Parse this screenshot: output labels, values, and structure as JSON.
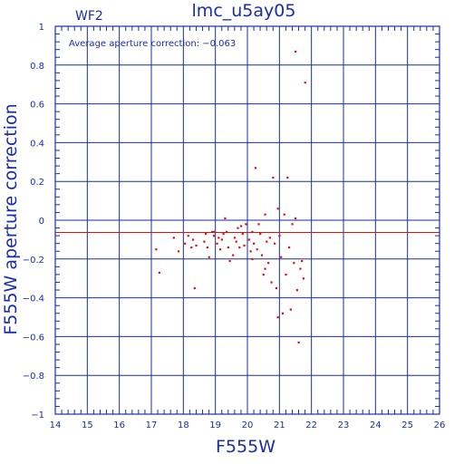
{
  "chart_data": {
    "type": "scatter",
    "title": "lmc_u5ay05",
    "subtitle": "WF2",
    "annotation": "Average aperture correction: −0.063",
    "xlabel": "F555W",
    "ylabel": "F555W aperture correction",
    "xlim": [
      14,
      26
    ],
    "ylim": [
      -1,
      1
    ],
    "xticks": [
      "14",
      "15",
      "16",
      "17",
      "18",
      "19",
      "20",
      "21",
      "22",
      "23",
      "24",
      "25",
      "26"
    ],
    "yticks": [
      "−1",
      "−0.8",
      "−0.6",
      "−0.4",
      "−0.2",
      "0",
      "0.2",
      "0.4",
      "0.6",
      "0.8",
      "1"
    ],
    "grid": true,
    "reference_lines": [
      {
        "axis": "y",
        "value": 0,
        "color": "#1a2ea8"
      },
      {
        "axis": "y",
        "value": -0.063,
        "color": "#e01010"
      }
    ],
    "point_color": "#e01010",
    "axis_color": "#1a2ea8",
    "series": [
      {
        "values": [
          {
            "x": 17.15,
            "y": -0.15
          },
          {
            "x": 17.25,
            "y": -0.27
          },
          {
            "x": 17.7,
            "y": -0.09
          },
          {
            "x": 17.85,
            "y": -0.16
          },
          {
            "x": 18.05,
            "y": -0.12
          },
          {
            "x": 18.15,
            "y": -0.08
          },
          {
            "x": 18.25,
            "y": -0.14
          },
          {
            "x": 18.3,
            "y": -0.1
          },
          {
            "x": 18.35,
            "y": -0.35
          },
          {
            "x": 18.4,
            "y": -0.13
          },
          {
            "x": 18.65,
            "y": -0.11
          },
          {
            "x": 18.7,
            "y": -0.07
          },
          {
            "x": 18.75,
            "y": -0.14
          },
          {
            "x": 18.8,
            "y": -0.19
          },
          {
            "x": 18.9,
            "y": -0.06
          },
          {
            "x": 18.95,
            "y": -0.08
          },
          {
            "x": 19.05,
            "y": -0.12
          },
          {
            "x": 19.1,
            "y": -0.09
          },
          {
            "x": 19.15,
            "y": -0.15
          },
          {
            "x": 19.25,
            "y": -0.07
          },
          {
            "x": 19.3,
            "y": 0.01
          },
          {
            "x": 19.35,
            "y": -0.06
          },
          {
            "x": 19.4,
            "y": -0.14
          },
          {
            "x": 19.45,
            "y": -0.21
          },
          {
            "x": 19.55,
            "y": -0.18
          },
          {
            "x": 19.6,
            "y": -0.09
          },
          {
            "x": 19.65,
            "y": -0.11
          },
          {
            "x": 19.7,
            "y": -0.04
          },
          {
            "x": 19.75,
            "y": -0.14
          },
          {
            "x": 19.8,
            "y": -0.03
          },
          {
            "x": 19.85,
            "y": -0.07
          },
          {
            "x": 19.9,
            "y": -0.13
          },
          {
            "x": 19.95,
            "y": -0.02
          },
          {
            "x": 20.05,
            "y": -0.1
          },
          {
            "x": 20.1,
            "y": -0.16
          },
          {
            "x": 20.15,
            "y": -0.2
          },
          {
            "x": 20.2,
            "y": -0.12
          },
          {
            "x": 20.25,
            "y": 0.27
          },
          {
            "x": 20.3,
            "y": -0.15
          },
          {
            "x": 20.35,
            "y": -0.02
          },
          {
            "x": 20.4,
            "y": -0.07
          },
          {
            "x": 20.45,
            "y": -0.18
          },
          {
            "x": 20.5,
            "y": -0.28
          },
          {
            "x": 20.55,
            "y": 0.03
          },
          {
            "x": 20.6,
            "y": -0.11
          },
          {
            "x": 20.65,
            "y": -0.22
          },
          {
            "x": 20.7,
            "y": -0.09
          },
          {
            "x": 20.75,
            "y": -0.32
          },
          {
            "x": 20.8,
            "y": 0.22
          },
          {
            "x": 20.85,
            "y": -0.12
          },
          {
            "x": 20.9,
            "y": -0.35
          },
          {
            "x": 20.95,
            "y": -0.5
          },
          {
            "x": 21.0,
            "y": -0.08
          },
          {
            "x": 21.05,
            "y": -0.19
          },
          {
            "x": 21.1,
            "y": -0.48
          },
          {
            "x": 21.15,
            "y": 0.03
          },
          {
            "x": 21.2,
            "y": -0.28
          },
          {
            "x": 21.25,
            "y": 0.22
          },
          {
            "x": 21.3,
            "y": -0.14
          },
          {
            "x": 21.35,
            "y": -0.46
          },
          {
            "x": 21.4,
            "y": -0.02
          },
          {
            "x": 21.45,
            "y": -0.22
          },
          {
            "x": 21.5,
            "y": 0.01
          },
          {
            "x": 21.55,
            "y": -0.36
          },
          {
            "x": 21.6,
            "y": -0.63
          },
          {
            "x": 21.65,
            "y": -0.25
          },
          {
            "x": 21.7,
            "y": -0.21
          },
          {
            "x": 21.5,
            "y": 0.87
          },
          {
            "x": 21.8,
            "y": 0.71
          },
          {
            "x": 21.75,
            "y": -0.3
          },
          {
            "x": 20.55,
            "y": -0.25
          },
          {
            "x": 20.95,
            "y": 0.06
          },
          {
            "x": 19.2,
            "y": -0.1
          },
          {
            "x": 18.95,
            "y": -0.06
          },
          {
            "x": 20.15,
            "y": -0.06
          }
        ]
      }
    ]
  }
}
